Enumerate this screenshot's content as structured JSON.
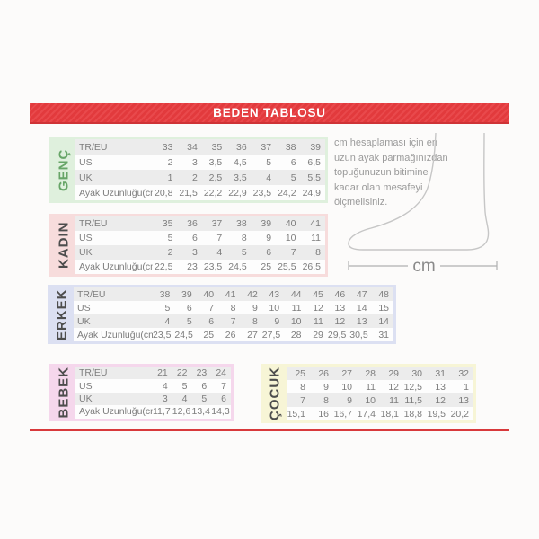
{
  "page": {
    "title": "BEDEN TABLOSU"
  },
  "note": {
    "text": "cm hesaplaması için en uzun ayak parmağınızdan topuğunuzun bitimine kadar olan mesafeyi ölçmelisiniz.",
    "unit_label": "cm"
  },
  "colors": {
    "banner_red": "#e73b3e",
    "banner_border_red": "#cf3336",
    "divider_red": "#d8393b",
    "stripe_gray": "#ececec",
    "table_text_gray": "#7d7d7d",
    "label_text_dark": "#4d4d4d",
    "genc_bg": "#dff0dd",
    "genc_label_green": "#67a567",
    "kadin_bg": "#f7dcdc",
    "erkek_bg": "#dce0f2",
    "bebek_bg": "#f5d7ec",
    "cocuk_bg": "#f7f5d6",
    "foot_outline_gray": "#c6c6c6"
  },
  "chart_data": [
    {
      "type": "table",
      "section": "GENÇ",
      "row_labels": [
        "TR/EU",
        "US",
        "UK",
        "Ayak Uzunluğu(cm)"
      ],
      "rows": [
        [
          "33",
          "34",
          "35",
          "36",
          "37",
          "38",
          "39"
        ],
        [
          "2",
          "3",
          "3,5",
          "4,5",
          "5",
          "6",
          "6,5"
        ],
        [
          "1",
          "2",
          "2,5",
          "3,5",
          "4",
          "5",
          "5,5"
        ],
        [
          "20,8",
          "21,5",
          "22,2",
          "22,9",
          "23,5",
          "24,2",
          "24,9"
        ]
      ]
    },
    {
      "type": "table",
      "section": "KADIN",
      "row_labels": [
        "TR/EU",
        "US",
        "UK",
        "Ayak Uzunluğu(cm)"
      ],
      "rows": [
        [
          "35",
          "36",
          "37",
          "38",
          "39",
          "40",
          "41"
        ],
        [
          "5",
          "6",
          "7",
          "8",
          "9",
          "10",
          "11"
        ],
        [
          "2",
          "3",
          "4",
          "5",
          "6",
          "7",
          "8"
        ],
        [
          "22,5",
          "23",
          "23,5",
          "24,5",
          "25",
          "25,5",
          "26,5"
        ]
      ]
    },
    {
      "type": "table",
      "section": "ERKEK",
      "row_labels": [
        "TR/EU",
        "US",
        "UK",
        "Ayak Uzunluğu(cm)"
      ],
      "rows": [
        [
          "38",
          "39",
          "40",
          "41",
          "42",
          "43",
          "44",
          "45",
          "46",
          "47",
          "48"
        ],
        [
          "5",
          "6",
          "7",
          "8",
          "9",
          "10",
          "11",
          "12",
          "13",
          "14",
          "15"
        ],
        [
          "4",
          "5",
          "6",
          "7",
          "8",
          "9",
          "10",
          "11",
          "12",
          "13",
          "14"
        ],
        [
          "23,5",
          "24,5",
          "25",
          "26",
          "27",
          "27,5",
          "28",
          "29",
          "29,5",
          "30,5",
          "31"
        ]
      ]
    },
    {
      "type": "table",
      "section": "BEBEK",
      "row_labels": [
        "TR/EU",
        "US",
        "UK",
        "Ayak Uzunluğu(cm)"
      ],
      "rows": [
        [
          "21",
          "22",
          "23",
          "24"
        ],
        [
          "4",
          "5",
          "6",
          "7"
        ],
        [
          "3",
          "4",
          "5",
          "6"
        ],
        [
          "11,7",
          "12,6",
          "13,4",
          "14,3"
        ]
      ]
    },
    {
      "type": "table",
      "section": "ÇOCUK",
      "row_labels": [],
      "rows": [
        [
          "25",
          "26",
          "27",
          "28",
          "29",
          "30",
          "31",
          "32"
        ],
        [
          "8",
          "9",
          "10",
          "11",
          "12",
          "12,5",
          "13",
          "1"
        ],
        [
          "7",
          "8",
          "9",
          "10",
          "11",
          "11,5",
          "12",
          "13"
        ],
        [
          "15,1",
          "16",
          "16,7",
          "17,4",
          "18,1",
          "18,8",
          "19,5",
          "20,2"
        ]
      ]
    }
  ]
}
